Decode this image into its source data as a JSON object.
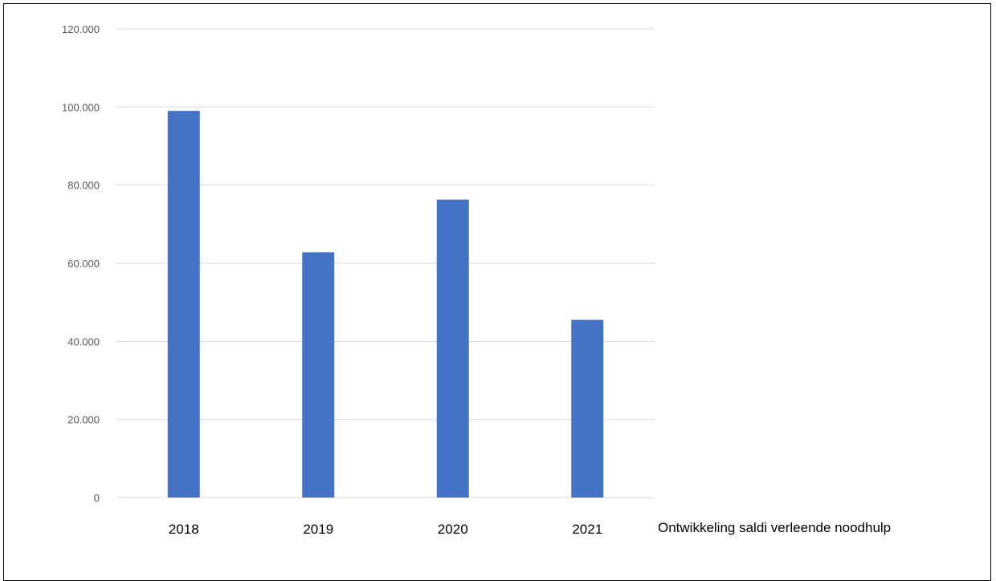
{
  "chart_data": {
    "type": "bar",
    "categories": [
      "2018",
      "2019",
      "2020",
      "2021"
    ],
    "values": [
      99000,
      62800,
      76300,
      45500
    ],
    "ylim": [
      0,
      120000
    ],
    "yticks": [
      "0",
      "20.000",
      "40.000",
      "60.000",
      "80.000",
      "100.000",
      "120.000"
    ],
    "ytick_values": [
      0,
      20000,
      40000,
      60000,
      80000,
      100000,
      120000
    ],
    "grid": true,
    "legend": "right",
    "series": [
      {
        "name": "Ontwikkeling saldi verleende noodhulp",
        "color": "#4472c4",
        "values": [
          99000,
          62800,
          76300,
          45500
        ]
      }
    ]
  },
  "colors": {
    "bar": "#4472c4",
    "grid": "#d9d9d9",
    "tick_text": "#595959",
    "category_text": "#000000"
  }
}
